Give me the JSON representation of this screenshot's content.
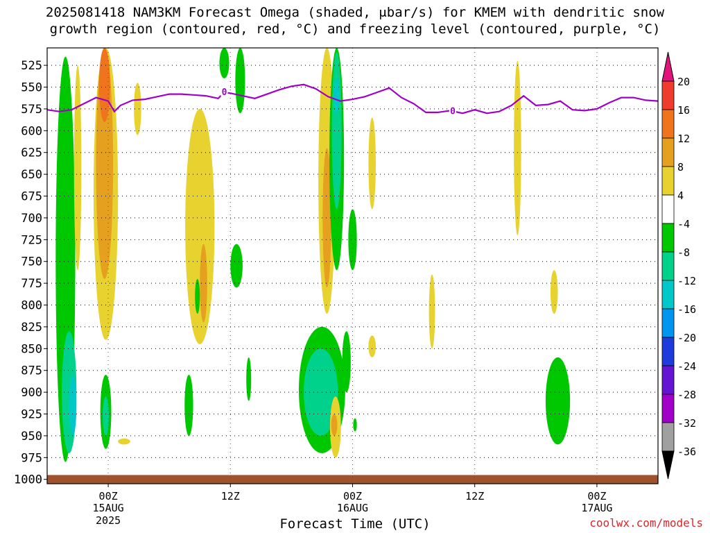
{
  "header": {
    "title_line1": "2025081418 NAM3KM Forecast Omega (shaded, μbar/s) for KMEM with dendritic snow",
    "title_line2": "growth region (contoured, red, °C) and freezing level (contoured, purple, °C)"
  },
  "footer": {
    "credit": "coolwx.com/models"
  },
  "chart_data": {
    "type": "heatmap",
    "xlabel": "Forecast Time (UTC)",
    "ylabel": "",
    "y_axis_inverted": true,
    "y_ticks": [
      525,
      550,
      575,
      600,
      625,
      650,
      675,
      700,
      725,
      750,
      775,
      800,
      825,
      850,
      875,
      900,
      925,
      950,
      975,
      1000
    ],
    "ylim": [
      505,
      1005
    ],
    "xlim": [
      -5,
      45
    ],
    "x_ticks": [
      {
        "hour": 0,
        "label": "00Z",
        "sub": "15AUG",
        "sub2": "2025"
      },
      {
        "hour": 10,
        "label": "12Z",
        "sub": "",
        "sub2": ""
      },
      {
        "hour": 20,
        "label": "00Z",
        "sub": "16AUG",
        "sub2": ""
      },
      {
        "hour": 30,
        "label": "12Z",
        "sub": "",
        "sub2": ""
      },
      {
        "hour": 40,
        "label": "00Z",
        "sub": "17AUG",
        "sub2": ""
      }
    ],
    "grid": true,
    "colorbar": {
      "labels": [
        "20",
        "16",
        "12",
        "8",
        "4",
        "-4",
        "-8",
        "-12",
        "-16",
        "-20",
        "-24",
        "-28",
        "-32",
        "-36"
      ],
      "top_color": "#e0147a",
      "bottom_color": "#000000",
      "colors": [
        "#e0147a",
        "#ee3c2e",
        "#f0731e",
        "#e6a020",
        "#e8d230",
        "#ffffff",
        "#00c800",
        "#00d28c",
        "#00c8c8",
        "#0096f0",
        "#1e3cdc",
        "#6414d2",
        "#a000c8",
        "#a0a0a0"
      ]
    },
    "freezing_level": {
      "color": "#a000c8",
      "label": "0",
      "x": [
        -5,
        -4,
        -3,
        -2,
        -1,
        0,
        0.5,
        1,
        2,
        3,
        4,
        5,
        6,
        7,
        8,
        9,
        9.5,
        10,
        11,
        12,
        13,
        14,
        15,
        16,
        17,
        18,
        19,
        20,
        21,
        22,
        23,
        24,
        25,
        26,
        27,
        28,
        29,
        30,
        31,
        32,
        33,
        34,
        35,
        36,
        37,
        38,
        39,
        40,
        41,
        42,
        43,
        44,
        45
      ],
      "p": [
        576,
        578,
        576,
        569,
        562,
        566,
        578,
        571,
        565,
        564,
        561,
        558,
        558,
        559,
        560,
        563,
        556,
        557,
        560,
        563,
        558,
        553,
        549,
        547,
        552,
        561,
        566,
        564,
        561,
        556,
        551,
        562,
        569,
        579,
        579,
        577,
        580,
        576,
        580,
        578,
        571,
        560,
        571,
        570,
        566,
        576,
        577,
        575,
        568,
        562,
        562,
        565,
        566
      ]
    },
    "omega_regions": [
      {
        "t": -3.5,
        "p0": 515,
        "p1": 980,
        "hw": 0.8,
        "v": -8
      },
      {
        "t": -3.2,
        "p0": 830,
        "p1": 970,
        "hw": 0.6,
        "v": -12
      },
      {
        "t": -2.9,
        "p0": 880,
        "p1": 950,
        "hw": 0.3,
        "v": -16
      },
      {
        "t": -2.5,
        "p0": 525,
        "p1": 760,
        "hw": 0.3,
        "v": 4
      },
      {
        "t": -0.2,
        "p0": 505,
        "p1": 840,
        "hw": 1.0,
        "v": 4
      },
      {
        "t": -0.3,
        "p0": 505,
        "p1": 770,
        "hw": 0.7,
        "v": 8
      },
      {
        "t": -0.3,
        "p0": 505,
        "p1": 590,
        "hw": 0.45,
        "v": 12
      },
      {
        "t": -0.2,
        "p0": 880,
        "p1": 965,
        "hw": 0.45,
        "v": -8
      },
      {
        "t": -0.2,
        "p0": 905,
        "p1": 950,
        "hw": 0.25,
        "v": -12
      },
      {
        "t": 1.3,
        "p0": 953,
        "p1": 960,
        "hw": 0.5,
        "v": 4
      },
      {
        "t": 2.4,
        "p0": 545,
        "p1": 605,
        "hw": 0.3,
        "v": 4
      },
      {
        "t": 7.5,
        "p0": 575,
        "p1": 845,
        "hw": 1.2,
        "v": 4
      },
      {
        "t": 7.8,
        "p0": 730,
        "p1": 820,
        "hw": 0.3,
        "v": 8
      },
      {
        "t": 7.3,
        "p0": 770,
        "p1": 810,
        "hw": 0.2,
        "v": -8
      },
      {
        "t": 6.6,
        "p0": 880,
        "p1": 950,
        "hw": 0.35,
        "v": -8
      },
      {
        "t": 9.5,
        "p0": 505,
        "p1": 540,
        "hw": 0.4,
        "v": -8
      },
      {
        "t": 10.5,
        "p0": 730,
        "p1": 780,
        "hw": 0.5,
        "v": -8
      },
      {
        "t": 10.8,
        "p0": 505,
        "p1": 580,
        "hw": 0.4,
        "v": -8
      },
      {
        "t": 11.5,
        "p0": 860,
        "p1": 910,
        "hw": 0.2,
        "v": -8
      },
      {
        "t": 17.5,
        "p0": 825,
        "p1": 970,
        "hw": 1.9,
        "v": -8
      },
      {
        "t": 17.4,
        "p0": 850,
        "p1": 950,
        "hw": 1.4,
        "v": -12
      },
      {
        "t": 17.9,
        "p0": 505,
        "p1": 810,
        "hw": 0.7,
        "v": 4
      },
      {
        "t": 17.9,
        "p0": 620,
        "p1": 780,
        "hw": 0.35,
        "v": 8
      },
      {
        "t": 18.7,
        "p0": 505,
        "p1": 760,
        "hw": 0.6,
        "v": -8
      },
      {
        "t": 18.7,
        "p0": 510,
        "p1": 690,
        "hw": 0.4,
        "v": -12
      },
      {
        "t": 18.7,
        "p0": 540,
        "p1": 580,
        "hw": 0.2,
        "v": -16
      },
      {
        "t": 18.6,
        "p0": 905,
        "p1": 975,
        "hw": 0.45,
        "v": 4
      },
      {
        "t": 18.5,
        "p0": 925,
        "p1": 950,
        "hw": 0.25,
        "v": 8
      },
      {
        "t": 19.5,
        "p0": 830,
        "p1": 900,
        "hw": 0.35,
        "v": -8
      },
      {
        "t": 20.0,
        "p0": 690,
        "p1": 760,
        "hw": 0.35,
        "v": -8
      },
      {
        "t": 21.6,
        "p0": 585,
        "p1": 690,
        "hw": 0.3,
        "v": 4
      },
      {
        "t": 21.6,
        "p0": 835,
        "p1": 860,
        "hw": 0.3,
        "v": 4
      },
      {
        "t": 20.2,
        "p0": 930,
        "p1": 945,
        "hw": 0.15,
        "v": -8
      },
      {
        "t": 26.5,
        "p0": 765,
        "p1": 850,
        "hw": 0.25,
        "v": 4
      },
      {
        "t": 33.5,
        "p0": 520,
        "p1": 720,
        "hw": 0.3,
        "v": 4
      },
      {
        "t": 36.5,
        "p0": 760,
        "p1": 810,
        "hw": 0.3,
        "v": 4
      },
      {
        "t": 36.8,
        "p0": 860,
        "p1": 960,
        "hw": 1.0,
        "v": -8
      }
    ],
    "dgz_contours": [
      {
        "t": 18.0,
        "p0": 545,
        "p1": 575,
        "hw": 0.2
      }
    ],
    "ground": {
      "color": "#a0522d",
      "p0": 995,
      "p1": 1005
    }
  }
}
